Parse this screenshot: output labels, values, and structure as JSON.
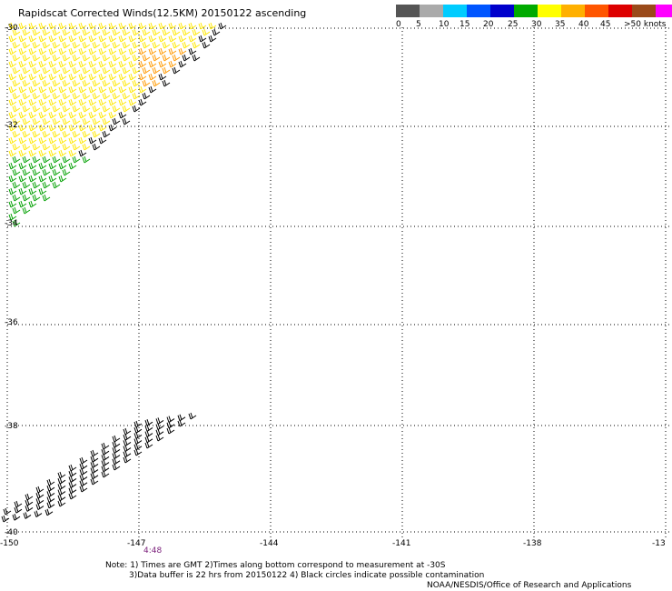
{
  "title": "Rapidscat Corrected Winds(12.5KM) 20150122 ascending",
  "legend": {
    "colors": [
      "#555555",
      "#aaaaaa",
      "#00ccff",
      "#0055ff",
      "#0000cc",
      "#00aa00",
      "#ffff00",
      "#ffb000",
      "#ff5500",
      "#dd0000",
      "#9a4a1a",
      "#ff00ff",
      "#7a0a99"
    ],
    "labels": [
      "0",
      "5",
      "10",
      "15",
      "20",
      "25",
      "30",
      "35",
      "40",
      "45",
      ">50 knots"
    ]
  },
  "lat_labels": [
    "-30",
    "-32",
    "-34",
    "-36",
    "-38",
    "-40"
  ],
  "lon_labels": [
    "-150",
    "-147",
    "-144",
    "-141",
    "-138",
    "-13"
  ],
  "time_label": "4:48",
  "notes": [
    "Note: 1) Times are GMT 2)Times along bottom correspond to measurement at -30S",
    "3)Data buffer is 22 hrs from 20150122 4) Black circles indicate possible contamination",
    "NOAA/NESDIS/Office of Research and Applications"
  ],
  "wind_colors": {
    "yellow": "#ffe800",
    "orange": "#ff9a00",
    "green": "#00a000",
    "black": "#000000"
  }
}
